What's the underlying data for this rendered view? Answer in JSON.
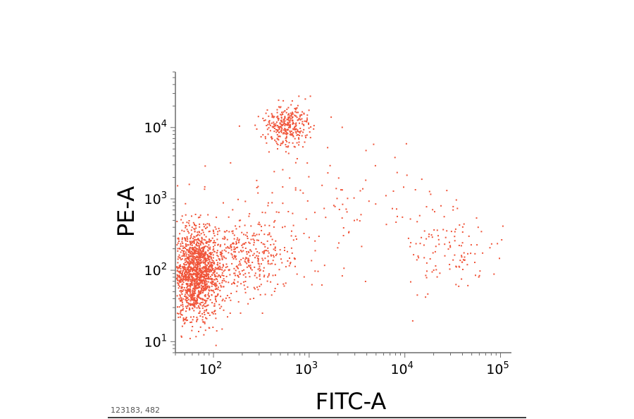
{
  "chart_data": {
    "type": "scatter",
    "xlabel": "FITC-A",
    "ylabel": "PE-A",
    "x_scale": "log",
    "y_scale": "log",
    "xlim": [
      40,
      130000
    ],
    "ylim": [
      7,
      60000
    ],
    "x_ticks": [
      {
        "base": "10",
        "exp": "2",
        "value": 100
      },
      {
        "base": "10",
        "exp": "3",
        "value": 1000
      },
      {
        "base": "10",
        "exp": "4",
        "value": 10000
      },
      {
        "base": "10",
        "exp": "5",
        "value": 100000
      }
    ],
    "y_ticks": [
      {
        "base": "10",
        "exp": "1",
        "value": 10
      },
      {
        "base": "10",
        "exp": "2",
        "value": 100
      },
      {
        "base": "10",
        "exp": "3",
        "value": 1000
      },
      {
        "base": "10",
        "exp": "4",
        "value": 10000
      }
    ],
    "grid": false,
    "point_color": "#f0553a",
    "populations": [
      {
        "center": [
          65,
          90
        ],
        "spread": [
          0.12,
          0.3
        ],
        "count": 1400
      },
      {
        "center": [
          200,
          160
        ],
        "spread": [
          0.3,
          0.3
        ],
        "count": 450
      },
      {
        "center": [
          580,
          11000
        ],
        "spread": [
          0.12,
          0.14
        ],
        "count": 320
      },
      {
        "center": [
          27000,
          190
        ],
        "spread": [
          0.25,
          0.25
        ],
        "count": 110
      },
      {
        "center": [
          2000,
          700
        ],
        "spread": [
          0.7,
          0.5
        ],
        "count": 120
      }
    ]
  },
  "footer": {
    "event_counts": "123183, 482"
  }
}
